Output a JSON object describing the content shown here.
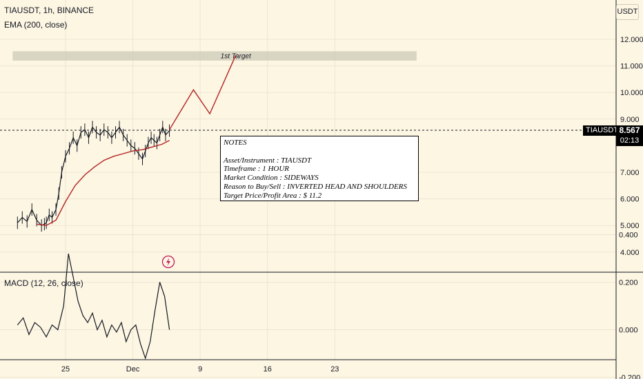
{
  "header": {
    "symbol_line": "TIAUSDT, 1h, BINANCE",
    "ema_label": "EMA (200, close)",
    "currency_button": "USDT",
    "macd_label": "MACD (12, 26, close)"
  },
  "price_label": {
    "symbol": "TIAUSDT",
    "price": "8.567",
    "countdown": "02:13"
  },
  "target_zone": {
    "label": "1st Target"
  },
  "notes": {
    "title": "NOTES",
    "lines": [
      "Asset/Instrument : TIAUSDT",
      "Timeframe : 1 HOUR",
      "Market Condition : SIDEWAYS",
      "Reason to Buy/Sell : INVERTED HEAD AND SHOULDERS",
      "Target Price/Profit Area : $ 11.2"
    ]
  },
  "colors": {
    "background": "#fdf6e3",
    "ema": "#b22222",
    "projection": "#b22222",
    "candles": "#131722",
    "target_zone": "#ccc9b8"
  },
  "icons": {
    "replay": "lightning-icon"
  },
  "chart_data": [
    {
      "type": "line",
      "title": "TIAUSDT, 1h, BINANCE",
      "ylim": [
        3.5,
        12.5
      ],
      "y_ticks": [
        "12.000",
        "11.000",
        "10.000",
        "9.000",
        "7.000",
        "6.000",
        "5.000",
        "4.000"
      ],
      "x_ticks": [
        "25",
        "Dec",
        "9",
        "16",
        "23"
      ],
      "last_price": 8.567,
      "series": [
        {
          "name": "TIAUSDT",
          "x_day": [
            20.0,
            20.5,
            21.0,
            21.5,
            22.0,
            22.5,
            22.8,
            23.0,
            23.3,
            23.6,
            24.0,
            24.3,
            24.6,
            25.0,
            25.4,
            25.8,
            26.2,
            26.6,
            27.0,
            27.4,
            27.8,
            28.2,
            28.6,
            29.0,
            29.4,
            29.8,
            30.2,
            30.6,
            31.0,
            31.4,
            31.8,
            32.2,
            32.6,
            33.0,
            33.3,
            33.6,
            33.9,
            34.2,
            34.5,
            34.8,
            35.1,
            35.4,
            35.8
          ],
          "y": [
            5.1,
            5.3,
            5.15,
            5.6,
            5.2,
            5.0,
            5.05,
            5.1,
            5.4,
            5.3,
            5.6,
            6.2,
            7.0,
            7.6,
            7.9,
            8.3,
            8.0,
            8.5,
            8.6,
            8.3,
            8.7,
            8.5,
            8.4,
            8.6,
            8.5,
            8.3,
            8.5,
            8.7,
            8.4,
            8.2,
            8.0,
            7.9,
            7.7,
            7.5,
            7.8,
            8.1,
            8.3,
            8.2,
            8.1,
            8.4,
            8.7,
            8.4,
            8.567
          ]
        },
        {
          "name": "EMA (200, close)",
          "x_day": [
            22,
            23,
            24,
            25,
            26,
            27,
            28,
            29,
            30,
            31,
            32,
            33,
            34,
            35,
            35.8
          ],
          "y": [
            5.05,
            5.0,
            5.2,
            5.9,
            6.5,
            6.9,
            7.2,
            7.45,
            7.6,
            7.7,
            7.8,
            7.85,
            7.95,
            8.05,
            8.2
          ]
        },
        {
          "name": "projection",
          "x_day": [
            35.8,
            38.3,
            40.0,
            42.7
          ],
          "y": [
            8.6,
            10.1,
            9.2,
            11.4
          ]
        }
      ],
      "target_zone_range": [
        11.2,
        11.55
      ]
    },
    {
      "type": "line",
      "title": "MACD (12, 26, close)",
      "ylim": [
        -0.22,
        0.42
      ],
      "y_ticks": [
        "0.400",
        "0.200",
        "0.000",
        "-0.200"
      ],
      "series": [
        {
          "name": "MACD",
          "x_day": [
            20.0,
            20.6,
            21.2,
            21.8,
            22.4,
            23.0,
            23.6,
            24.2,
            24.8,
            25.3,
            25.8,
            26.3,
            26.8,
            27.3,
            27.8,
            28.3,
            28.8,
            29.3,
            29.8,
            30.3,
            30.8,
            31.3,
            31.8,
            32.3,
            32.8,
            33.3,
            33.8,
            34.3,
            34.8,
            35.3,
            35.8
          ],
          "y": [
            0.02,
            0.05,
            -0.02,
            0.03,
            0.01,
            -0.03,
            0.02,
            0.0,
            0.1,
            0.32,
            0.22,
            0.12,
            0.06,
            0.03,
            0.07,
            0.0,
            0.04,
            -0.03,
            0.02,
            -0.01,
            0.03,
            -0.05,
            0.0,
            0.02,
            -0.06,
            -0.12,
            -0.05,
            0.08,
            0.2,
            0.14,
            0.0
          ]
        }
      ]
    }
  ]
}
